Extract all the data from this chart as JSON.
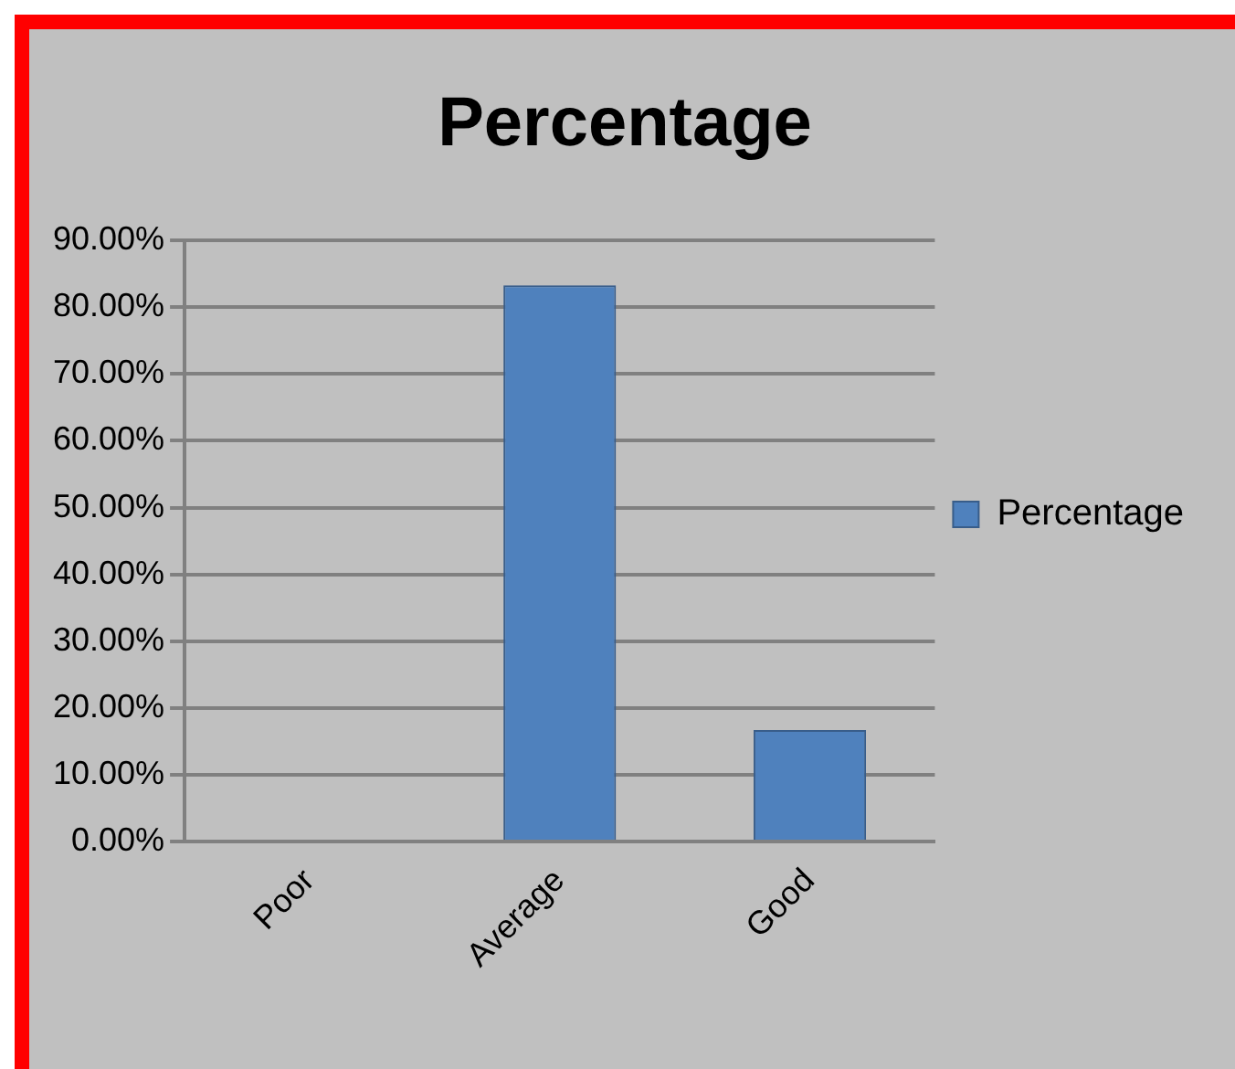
{
  "chart_data": {
    "type": "bar",
    "title": "Percentage",
    "categories": [
      "Poor",
      "Average",
      "Good"
    ],
    "series": [
      {
        "name": "Percentage",
        "color": "#4f81bd",
        "values": [
          0,
          83.3,
          16.7
        ]
      }
    ],
    "ylim": [
      0,
      90
    ],
    "yticks": [
      {
        "value": 0,
        "label": "0.00%"
      },
      {
        "value": 10,
        "label": "10.00%"
      },
      {
        "value": 20,
        "label": "20.00%"
      },
      {
        "value": 30,
        "label": "30.00%"
      },
      {
        "value": 40,
        "label": "40.00%"
      },
      {
        "value": 50,
        "label": "50.00%"
      },
      {
        "value": 60,
        "label": "60.00%"
      },
      {
        "value": 70,
        "label": "70.00%"
      },
      {
        "value": 80,
        "label": "80.00%"
      },
      {
        "value": 90,
        "label": "90.00%"
      }
    ],
    "grid": "y",
    "legend": "right"
  }
}
